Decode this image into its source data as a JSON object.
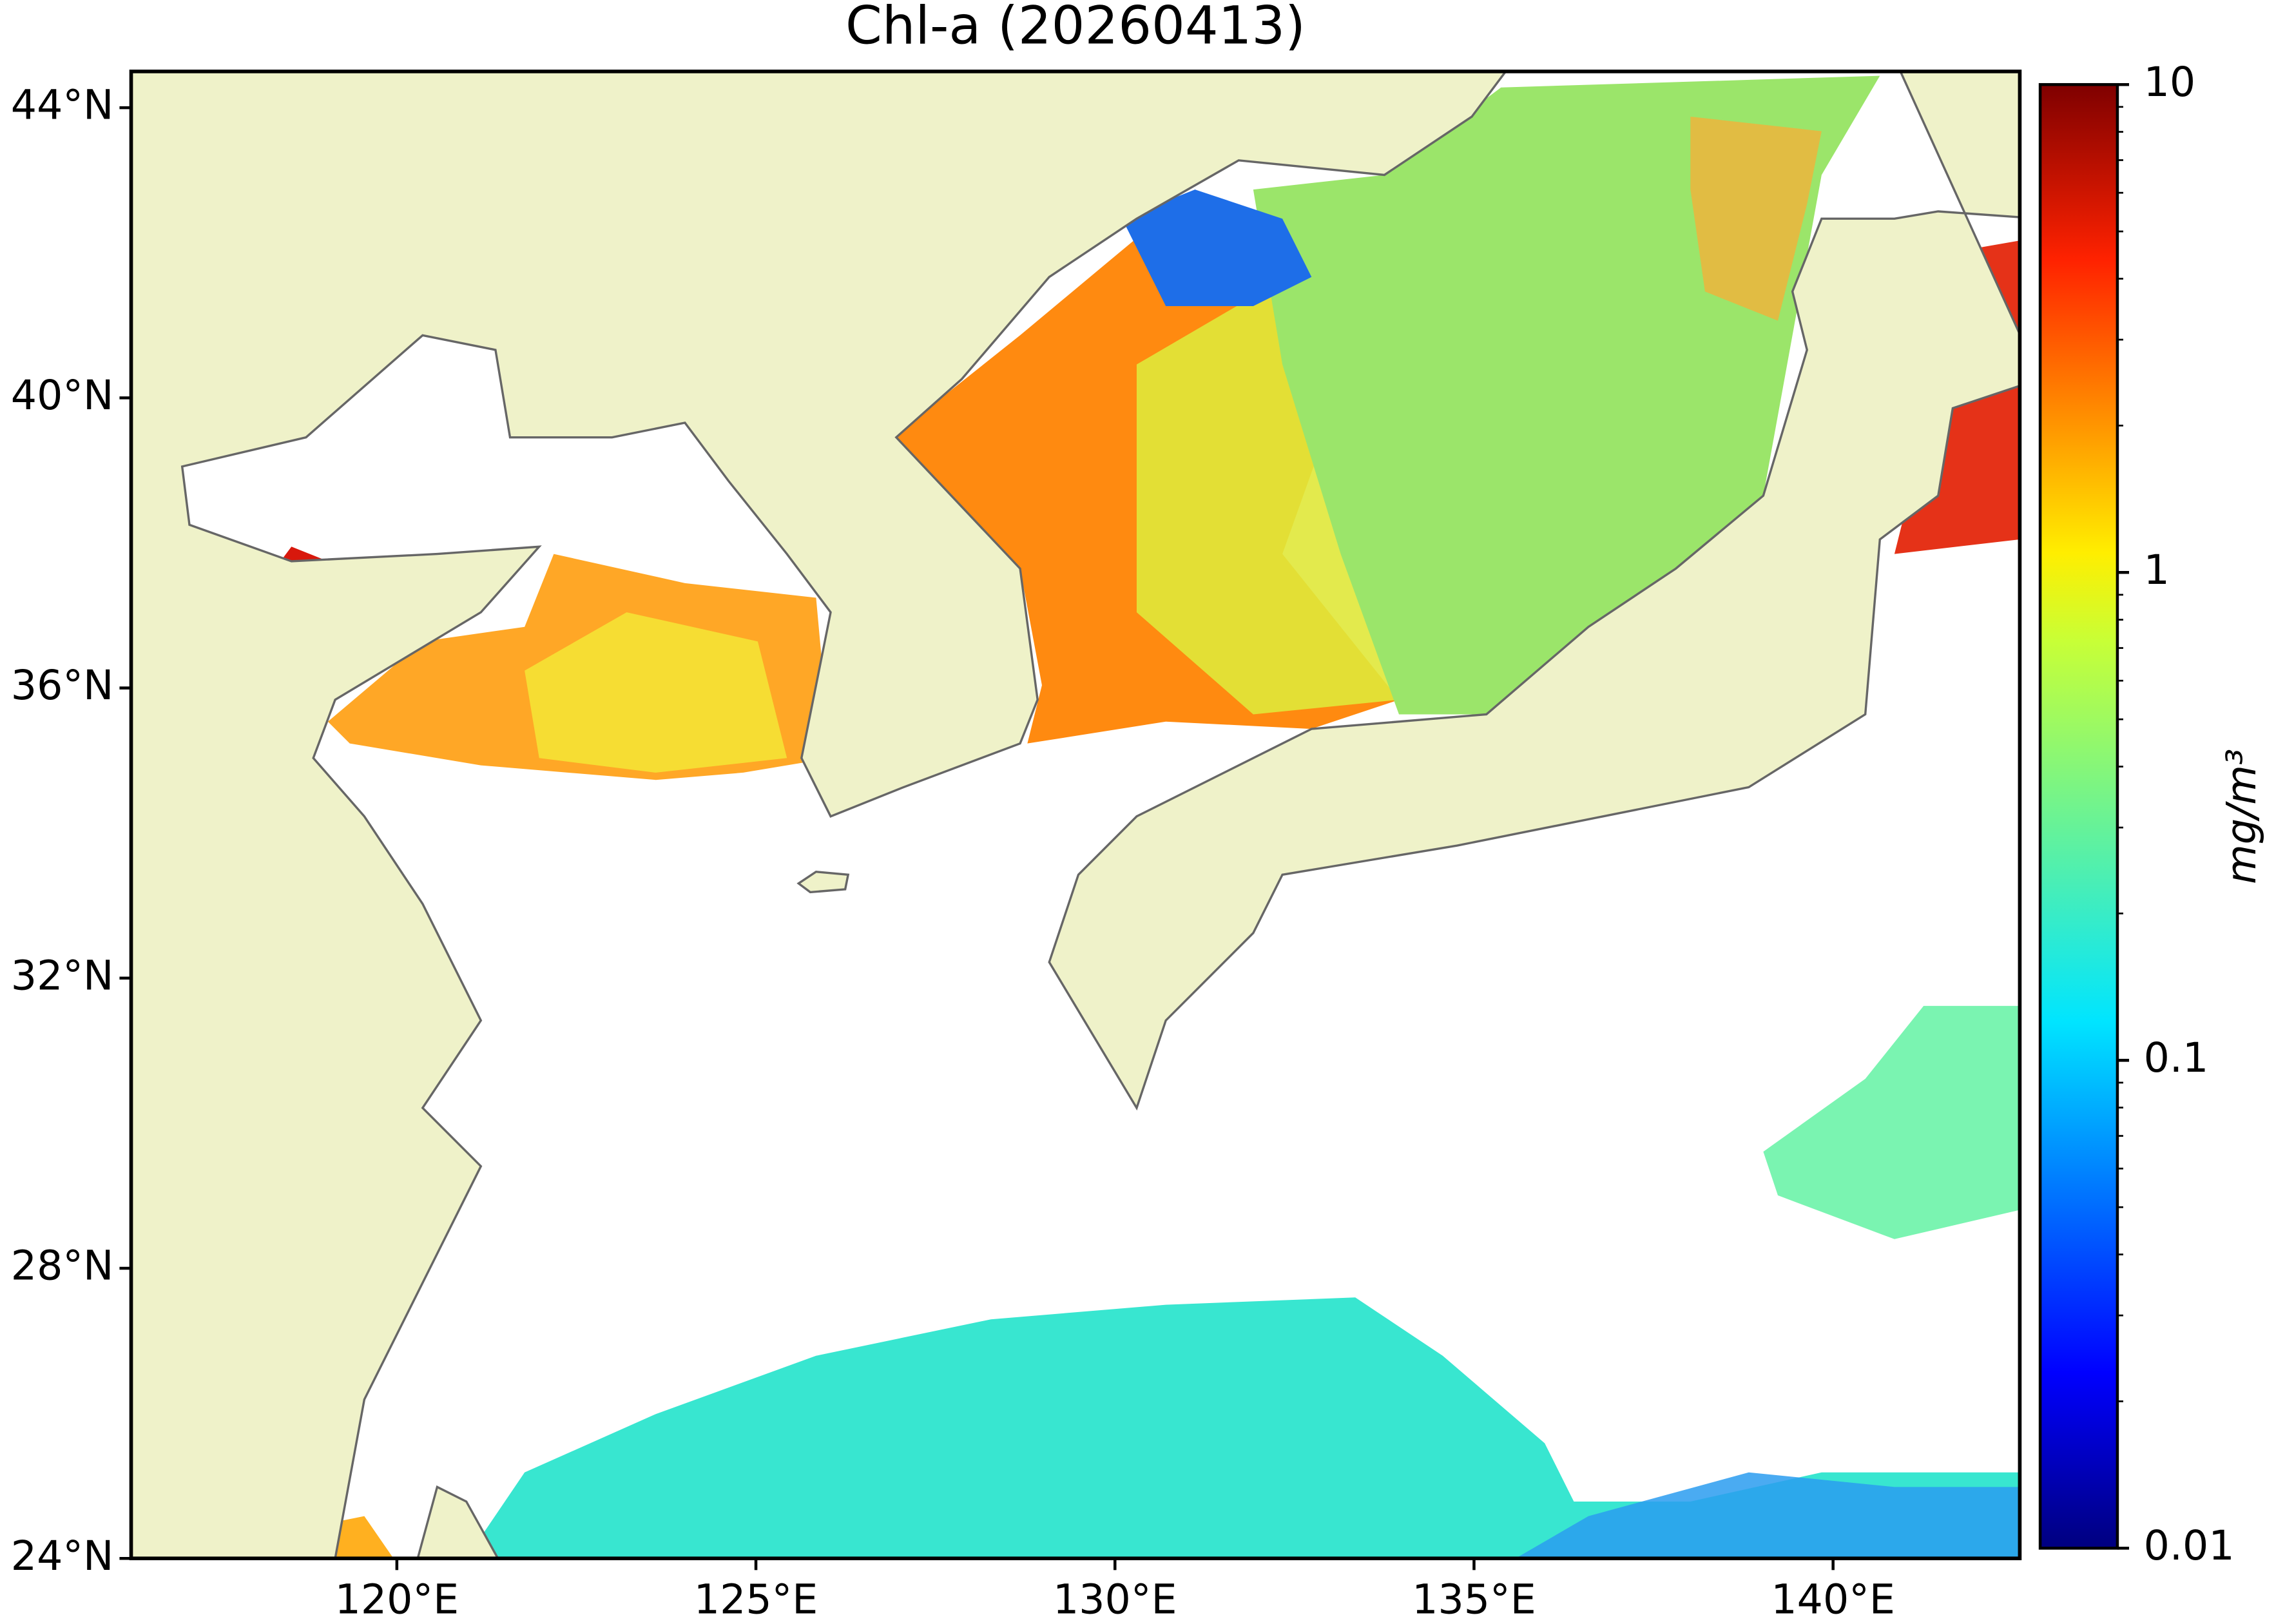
{
  "chart_data": {
    "type": "map",
    "title": "Chl-a (20260413)",
    "xlim": [
      116.3,
      142.6
    ],
    "ylim": [
      24,
      44.5
    ],
    "xticks": [
      {
        "value": 120,
        "label": "120°E"
      },
      {
        "value": 125,
        "label": "125°E"
      },
      {
        "value": 130,
        "label": "130°E"
      },
      {
        "value": 135,
        "label": "135°E"
      },
      {
        "value": 140,
        "label": "140°E"
      }
    ],
    "yticks": [
      {
        "value": 24,
        "label": "24°N"
      },
      {
        "value": 28,
        "label": "28°N"
      },
      {
        "value": 32,
        "label": "32°N"
      },
      {
        "value": 36,
        "label": "36°N"
      },
      {
        "value": 40,
        "label": "40°N"
      },
      {
        "value": 44,
        "label": "44°N"
      }
    ],
    "colorbar": {
      "label": "mg/m³",
      "log_scale": true,
      "clim": [
        0.01,
        10
      ],
      "ticks": [
        0.01,
        0.1,
        1,
        10
      ]
    }
  }
}
